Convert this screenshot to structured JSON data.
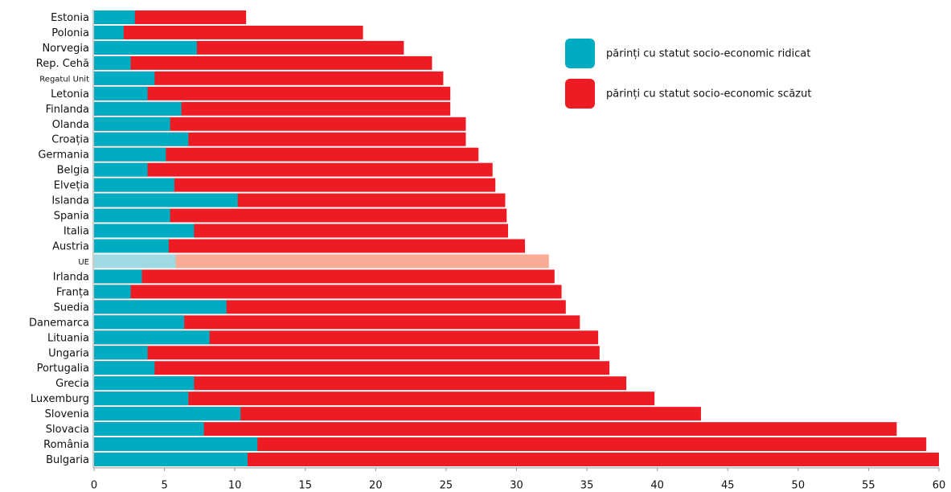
{
  "chart_data": {
    "type": "bar",
    "orientation": "horizontal",
    "overlap": true,
    "categories": [
      "Estonia",
      "Polonia",
      "Norvegia",
      "Rep. Cehă",
      "Regatul Unit",
      "Letonia",
      "Finlanda",
      "Olanda",
      "Croația",
      "Germania",
      "Belgia",
      "Elveția",
      "Islanda",
      "Spania",
      "Italia",
      "Austria",
      "UE",
      "Irlanda",
      "Franța",
      "Suedia",
      "Danemarca",
      "Lituania",
      "Ungaria",
      "Portugalia",
      "Grecia",
      "Luxemburg",
      "Slovenia",
      "Slovacia",
      "România",
      "Bulgaria"
    ],
    "series": [
      {
        "name": "părinți cu statut socio-economic scăzut",
        "color": "#ed1c24",
        "highlight_color": "#f9ab96",
        "values": [
          10.8,
          19.1,
          22.0,
          24.0,
          24.8,
          25.3,
          25.3,
          26.4,
          26.4,
          27.3,
          28.3,
          28.5,
          29.2,
          29.3,
          29.4,
          30.6,
          32.3,
          32.7,
          33.2,
          33.5,
          34.5,
          35.8,
          35.9,
          36.6,
          37.8,
          39.8,
          43.1,
          57.0,
          59.1,
          60.0
        ]
      },
      {
        "name": "părinți cu statut socio-economic ridicat",
        "color": "#00acc1",
        "highlight_color": "#a0d9e1",
        "values": [
          2.9,
          2.1,
          7.3,
          2.6,
          4.3,
          3.8,
          6.2,
          5.4,
          6.7,
          5.1,
          3.8,
          5.7,
          10.2,
          5.4,
          7.1,
          5.3,
          5.8,
          3.4,
          2.6,
          9.4,
          6.4,
          8.2,
          3.8,
          4.3,
          7.1,
          6.7,
          10.4,
          7.8,
          11.6,
          10.9
        ]
      }
    ],
    "highlight_index": 16,
    "small_label_indices": [
      4,
      16
    ],
    "xlim": [
      0,
      60
    ],
    "xticks": [
      0,
      5,
      10,
      15,
      20,
      25,
      30,
      35,
      40,
      45,
      50,
      55,
      60
    ],
    "legend": "top-right"
  }
}
